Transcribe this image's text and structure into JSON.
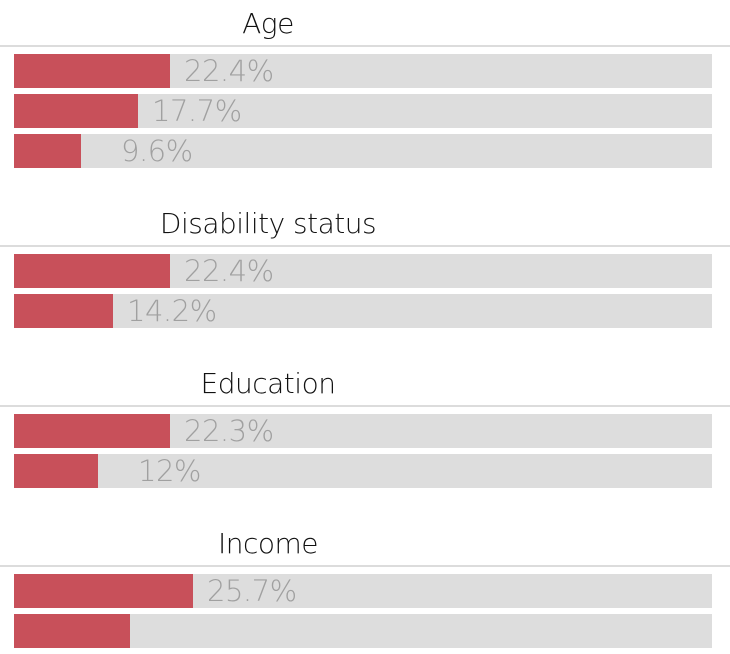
{
  "colors": {
    "fill": "#c8505a",
    "track": "#dddddd",
    "label": "#a0a0a0"
  },
  "chart_data": {
    "type": "bar",
    "orientation": "horizontal",
    "xlim": [
      0,
      100
    ],
    "groups": [
      {
        "title": "Age",
        "values": [
          22.4,
          17.7,
          9.6
        ],
        "labels": [
          "22.4%",
          "17.7%",
          "9.6%"
        ]
      },
      {
        "title": "Disability status",
        "values": [
          22.4,
          14.2
        ],
        "labels": [
          "22.4%",
          "14.2%"
        ]
      },
      {
        "title": "Education",
        "values": [
          22.3,
          12
        ],
        "labels": [
          "22.3%",
          "12%"
        ]
      },
      {
        "title": "Income",
        "values": [
          25.7,
          16.6
        ],
        "labels": [
          "25.7%",
          ""
        ]
      }
    ]
  }
}
